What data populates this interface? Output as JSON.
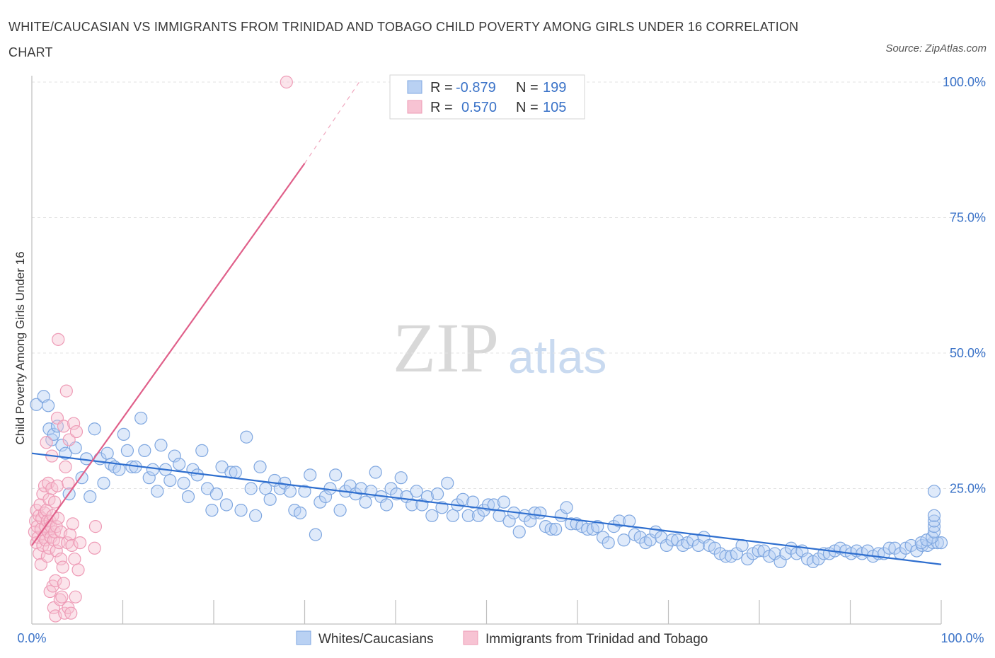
{
  "header": {
    "title": "WHITE/CAUCASIAN VS IMMIGRANTS FROM TRINIDAD AND TOBAGO CHILD POVERTY AMONG GIRLS UNDER 16 CORRELATION CHART",
    "source": "Source: ZipAtlas.com"
  },
  "watermark": {
    "zip": "ZIP",
    "atlas": "atlas"
  },
  "chart_data": {
    "type": "scatter",
    "title": "WHITE/CAUCASIAN VS IMMIGRANTS FROM TRINIDAD AND TOBAGO CHILD POVERTY AMONG GIRLS UNDER 16 CORRELATION CHART",
    "xlabel": "",
    "ylabel": "Child Poverty Among Girls Under 16",
    "xlim": [
      0,
      100
    ],
    "ylim": [
      0,
      100
    ],
    "x_tick_labels": [
      "0.0%",
      "100.0%"
    ],
    "y_ticks": [
      25,
      50,
      75,
      100
    ],
    "y_tick_labels": [
      "25.0%",
      "50.0%",
      "75.0%",
      "100.0%"
    ],
    "grid": true,
    "legend_position": "top-center",
    "legend": [
      {
        "name": "Whites/Caucasians",
        "r_label": "R =",
        "r_value": "-0.879",
        "n_label": "N =",
        "n_value": "199",
        "color": "#8fb4e8",
        "line": "#2f6fcf"
      },
      {
        "name": "Immigrants from Trinidad and Tobago",
        "r_label": "R =",
        "r_value": "0.570",
        "n_label": "N =",
        "n_value": "105",
        "color": "#f3a4bd",
        "line": "#e0608a"
      }
    ],
    "series": [
      {
        "name": "Whites/Caucasians",
        "trend": {
          "x0": 0,
          "y0": 31.5,
          "x1": 100,
          "y1": 11
        },
        "points": [
          [
            0.5,
            40.5
          ],
          [
            1.3,
            42
          ],
          [
            1.8,
            40.3
          ],
          [
            1.9,
            36
          ],
          [
            2.2,
            34
          ],
          [
            2.4,
            35
          ],
          [
            2.8,
            36.5
          ],
          [
            3.3,
            33
          ],
          [
            3.7,
            31.5
          ],
          [
            4.1,
            24
          ],
          [
            4.8,
            32.5
          ],
          [
            5.5,
            27
          ],
          [
            6,
            30.5
          ],
          [
            6.4,
            23.5
          ],
          [
            6.9,
            36
          ],
          [
            7.5,
            30.5
          ],
          [
            7.9,
            26
          ],
          [
            8.3,
            31.5
          ],
          [
            8.7,
            29.5
          ],
          [
            9.1,
            29
          ],
          [
            9.6,
            28.5
          ],
          [
            10.1,
            35
          ],
          [
            10.5,
            32
          ],
          [
            11,
            29
          ],
          [
            11.4,
            29
          ],
          [
            12,
            38
          ],
          [
            12.4,
            32
          ],
          [
            12.9,
            27
          ],
          [
            13.3,
            28.5
          ],
          [
            13.8,
            24.5
          ],
          [
            14.2,
            33
          ],
          [
            14.7,
            28.5
          ],
          [
            15.2,
            26.5
          ],
          [
            15.7,
            31
          ],
          [
            16.2,
            29.5
          ],
          [
            16.7,
            26
          ],
          [
            17.2,
            23.5
          ],
          [
            17.7,
            28.5
          ],
          [
            18.2,
            27.5
          ],
          [
            18.7,
            32
          ],
          [
            19.3,
            25
          ],
          [
            19.8,
            21
          ],
          [
            20.3,
            24
          ],
          [
            20.9,
            29
          ],
          [
            21.4,
            22
          ],
          [
            21.9,
            28
          ],
          [
            22.4,
            28
          ],
          [
            23,
            21
          ],
          [
            23.6,
            34.5
          ],
          [
            24.1,
            25
          ],
          [
            24.6,
            20
          ],
          [
            25.1,
            29
          ],
          [
            25.7,
            25
          ],
          [
            26.2,
            23
          ],
          [
            26.7,
            26.5
          ],
          [
            27.3,
            25
          ],
          [
            27.8,
            26
          ],
          [
            28.4,
            24.5
          ],
          [
            28.9,
            21
          ],
          [
            29.5,
            20.5
          ],
          [
            30,
            24.5
          ],
          [
            30.6,
            27.5
          ],
          [
            31.2,
            16.5
          ],
          [
            31.7,
            22.5
          ],
          [
            32.3,
            23.5
          ],
          [
            32.8,
            25
          ],
          [
            33.4,
            27.5
          ],
          [
            33.9,
            21
          ],
          [
            34.5,
            24.5
          ],
          [
            35,
            25.5
          ],
          [
            35.6,
            24
          ],
          [
            36.2,
            25
          ],
          [
            36.7,
            22.5
          ],
          [
            37.3,
            24.5
          ],
          [
            37.8,
            28
          ],
          [
            38.4,
            23.5
          ],
          [
            39,
            22
          ],
          [
            39.5,
            25
          ],
          [
            40.1,
            24
          ],
          [
            40.6,
            27
          ],
          [
            41.2,
            23.5
          ],
          [
            41.8,
            22
          ],
          [
            42.3,
            24.5
          ],
          [
            42.9,
            22
          ],
          [
            43.5,
            23.5
          ],
          [
            44,
            20
          ],
          [
            44.6,
            24
          ],
          [
            45.1,
            21.5
          ],
          [
            45.7,
            26
          ],
          [
            46.3,
            20
          ],
          [
            46.8,
            22
          ],
          [
            47.4,
            23
          ],
          [
            48,
            20
          ],
          [
            48.5,
            22.5
          ],
          [
            49.1,
            20
          ],
          [
            49.7,
            21
          ],
          [
            50.2,
            22
          ],
          [
            50.8,
            22
          ],
          [
            51.4,
            20
          ],
          [
            51.9,
            22.5
          ],
          [
            52.5,
            19
          ],
          [
            53,
            20.5
          ],
          [
            53.6,
            17
          ],
          [
            54.2,
            20
          ],
          [
            54.8,
            19
          ],
          [
            55.3,
            20.5
          ],
          [
            55.9,
            20.5
          ],
          [
            56.5,
            18
          ],
          [
            57.1,
            17.5
          ],
          [
            57.6,
            17.5
          ],
          [
            58.2,
            20
          ],
          [
            58.8,
            21.5
          ],
          [
            59.3,
            18.5
          ],
          [
            59.9,
            18.5
          ],
          [
            60.5,
            18
          ],
          [
            61.1,
            17.5
          ],
          [
            61.7,
            17.5
          ],
          [
            62.2,
            18
          ],
          [
            62.8,
            16
          ],
          [
            63.4,
            15
          ],
          [
            64,
            18
          ],
          [
            64.6,
            19
          ],
          [
            65.1,
            15.5
          ],
          [
            65.7,
            19
          ],
          [
            66.3,
            16.5
          ],
          [
            66.9,
            16
          ],
          [
            67.5,
            15
          ],
          [
            68,
            15.5
          ],
          [
            68.6,
            17
          ],
          [
            69.2,
            16
          ],
          [
            69.8,
            14.5
          ],
          [
            70.4,
            15.5
          ],
          [
            71,
            15.5
          ],
          [
            71.6,
            14.5
          ],
          [
            72.1,
            15
          ],
          [
            72.7,
            15.5
          ],
          [
            73.3,
            14.5
          ],
          [
            73.9,
            16
          ],
          [
            74.5,
            14.5
          ],
          [
            75.1,
            14
          ],
          [
            75.7,
            13
          ],
          [
            76.3,
            12.5
          ],
          [
            76.9,
            12.5
          ],
          [
            77.5,
            13
          ],
          [
            78.1,
            14.5
          ],
          [
            78.7,
            12
          ],
          [
            79.3,
            13
          ],
          [
            79.9,
            13.5
          ],
          [
            80.5,
            13.5
          ],
          [
            81.1,
            12.5
          ],
          [
            81.7,
            13
          ],
          [
            82.3,
            11.5
          ],
          [
            82.9,
            13
          ],
          [
            83.5,
            14
          ],
          [
            84.1,
            13
          ],
          [
            84.7,
            13.5
          ],
          [
            85.3,
            12
          ],
          [
            85.9,
            11.5
          ],
          [
            86.5,
            12
          ],
          [
            87.1,
            13
          ],
          [
            87.7,
            13
          ],
          [
            88.3,
            13.5
          ],
          [
            88.9,
            14
          ],
          [
            89.5,
            13.5
          ],
          [
            90.1,
            13
          ],
          [
            90.7,
            13.5
          ],
          [
            91.3,
            13
          ],
          [
            91.9,
            13.5
          ],
          [
            92.5,
            12.5
          ],
          [
            93.1,
            13
          ],
          [
            93.7,
            13
          ],
          [
            94.3,
            14
          ],
          [
            94.9,
            14
          ],
          [
            95.5,
            13
          ],
          [
            96.1,
            14
          ],
          [
            96.7,
            14.5
          ],
          [
            97.3,
            13.5
          ],
          [
            97.9,
            14.5
          ],
          [
            98.5,
            14.5
          ],
          [
            99.1,
            15
          ],
          [
            99.6,
            15
          ],
          [
            100,
            15
          ]
        ],
        "points_tail": [
          [
            97.8,
            15
          ],
          [
            98.4,
            15.5
          ],
          [
            99,
            16
          ],
          [
            99.6,
            17
          ],
          [
            100.2,
            18
          ],
          [
            101,
            19
          ],
          [
            101.8,
            20
          ],
          [
            102.3,
            24.5
          ]
        ]
      },
      {
        "name": "Immigrants from Trinidad and Tobago",
        "trend": {
          "x0": 0,
          "y0": 14.5,
          "x1": 30,
          "y1": 85,
          "dash_to": [
            36,
            100
          ]
        },
        "points": [
          [
            0.3,
            17
          ],
          [
            0.4,
            19
          ],
          [
            0.5,
            21
          ],
          [
            0.5,
            15
          ],
          [
            0.6,
            18
          ],
          [
            0.7,
            16
          ],
          [
            0.8,
            20
          ],
          [
            0.8,
            13
          ],
          [
            0.9,
            22
          ],
          [
            1,
            17.5
          ],
          [
            1,
            11
          ],
          [
            1.1,
            19.5
          ],
          [
            1.2,
            14.5
          ],
          [
            1.2,
            24
          ],
          [
            1.3,
            16
          ],
          [
            1.4,
            20.5
          ],
          [
            1.4,
            25.5
          ],
          [
            1.5,
            18
          ],
          [
            1.5,
            15.5
          ],
          [
            1.6,
            33.5
          ],
          [
            1.6,
            21
          ],
          [
            1.7,
            19
          ],
          [
            1.7,
            12.5
          ],
          [
            1.8,
            26
          ],
          [
            1.8,
            17
          ],
          [
            1.9,
            23
          ],
          [
            1.9,
            14
          ],
          [
            2,
            19
          ],
          [
            2,
            6
          ],
          [
            2.1,
            18
          ],
          [
            2.1,
            16
          ],
          [
            2.2,
            25
          ],
          [
            2.2,
            31
          ],
          [
            2.3,
            7
          ],
          [
            2.3,
            20
          ],
          [
            2.4,
            15.5
          ],
          [
            2.4,
            3
          ],
          [
            2.5,
            17
          ],
          [
            2.5,
            22.5
          ],
          [
            2.6,
            8
          ],
          [
            2.6,
            1.5
          ],
          [
            2.7,
            18
          ],
          [
            2.7,
            13.5
          ],
          [
            2.8,
            38
          ],
          [
            2.8,
            25.5
          ],
          [
            2.9,
            19.5
          ],
          [
            2.9,
            52.5
          ],
          [
            3,
            15
          ],
          [
            3.1,
            4.5
          ],
          [
            3.2,
            12
          ],
          [
            3.2,
            17
          ],
          [
            3.3,
            5
          ],
          [
            3.4,
            10.5
          ],
          [
            3.5,
            36.5
          ],
          [
            3.5,
            7.5
          ],
          [
            3.6,
            2
          ],
          [
            3.7,
            29
          ],
          [
            3.8,
            43
          ],
          [
            3.9,
            15
          ],
          [
            4,
            26
          ],
          [
            4,
            3
          ],
          [
            4.1,
            34
          ],
          [
            4.2,
            16.5
          ],
          [
            4.3,
            2
          ],
          [
            4.4,
            14.5
          ],
          [
            4.5,
            18.5
          ],
          [
            4.6,
            37
          ],
          [
            4.7,
            12
          ],
          [
            4.8,
            5
          ],
          [
            4.9,
            35.5
          ],
          [
            5.1,
            10
          ],
          [
            5.3,
            15
          ],
          [
            6.9,
            14
          ],
          [
            7,
            18
          ],
          [
            28,
            100
          ]
        ]
      }
    ]
  }
}
